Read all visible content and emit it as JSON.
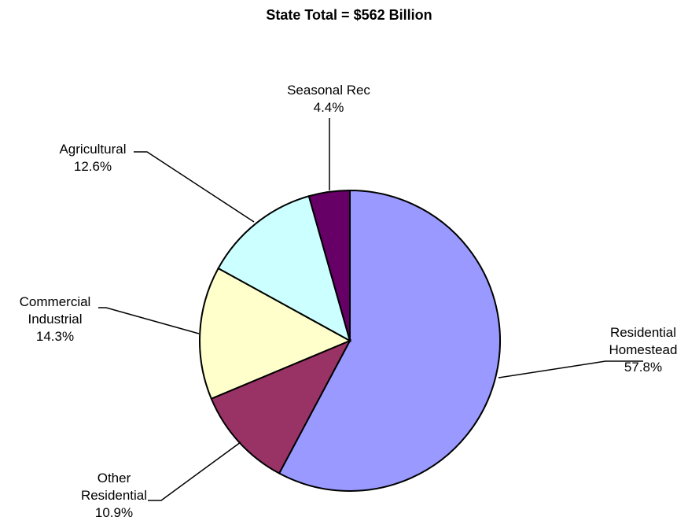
{
  "chart_data": {
    "type": "pie",
    "title": "State Total = $562 Billion",
    "slices": [
      {
        "label_lines": [
          "Residential",
          "Homestead"
        ],
        "value_label": "57.8%",
        "value": 57.8,
        "color": "#9999FF"
      },
      {
        "label_lines": [
          "Other",
          "Residential"
        ],
        "value_label": "10.9%",
        "value": 10.9,
        "color": "#993366"
      },
      {
        "label_lines": [
          "Commercial",
          "Industrial"
        ],
        "value_label": "14.3%",
        "value": 14.3,
        "color": "#FFFFCC"
      },
      {
        "label_lines": [
          "Agricultural"
        ],
        "value_label": "12.6%",
        "value": 12.6,
        "color": "#CCFFFF"
      },
      {
        "label_lines": [
          "Seasonal Rec"
        ],
        "value_label": "4.4%",
        "value": 4.4,
        "color": "#660066"
      }
    ],
    "start_angle": "12 o'clock",
    "direction": "clockwise",
    "legend": "none"
  }
}
